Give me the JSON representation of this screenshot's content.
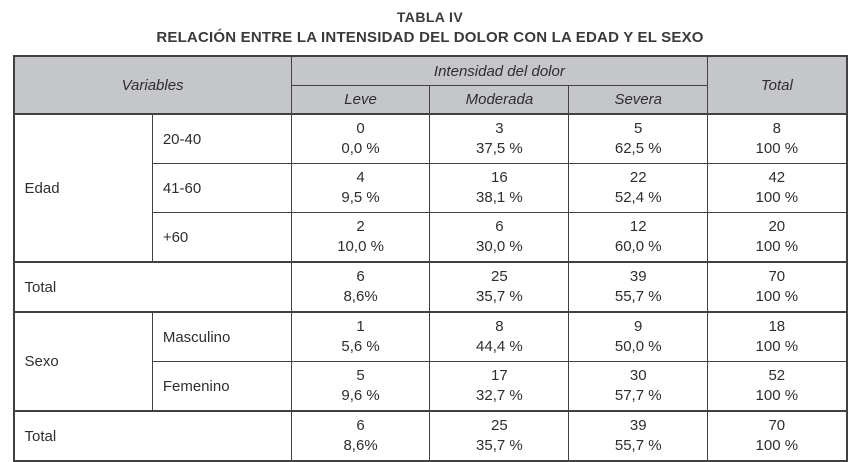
{
  "title": "TABLA IV",
  "subtitle": "RELACIÓN ENTRE LA INTENSIDAD DEL DOLOR CON LA EDAD Y EL SEXO",
  "colors": {
    "header_bg": "#c5c6c9",
    "border_color": "#414141",
    "text_color": "#2e2e2e"
  },
  "chart_data": {
    "type": "table",
    "title": "TABLA IV — RELACIÓN ENTRE LA INTENSIDAD DEL DOLOR CON LA EDAD Y EL SEXO",
    "header": {
      "variables": "Variables",
      "intensity_group": "Intensidad del dolor",
      "sub_columns": [
        "Leve",
        "Moderada",
        "Severa"
      ],
      "total": "Total"
    },
    "row_groups": {
      "edad": "Edad",
      "total1": "Total",
      "sexo": "Sexo",
      "total2": "Total"
    },
    "rows": [
      {
        "label": "20-40",
        "cells": [
          {
            "n": "0",
            "p": "0,0 %"
          },
          {
            "n": "3",
            "p": "37,5 %"
          },
          {
            "n": "5",
            "p": "62,5 %"
          },
          {
            "n": "8",
            "p": "100 %"
          }
        ]
      },
      {
        "label": "41-60",
        "cells": [
          {
            "n": "4",
            "p": "9,5 %"
          },
          {
            "n": "16",
            "p": "38,1 %"
          },
          {
            "n": "22",
            "p": "52,4 %"
          },
          {
            "n": "42",
            "p": "100 %"
          }
        ]
      },
      {
        "label": "+60",
        "cells": [
          {
            "n": "2",
            "p": "10,0 %"
          },
          {
            "n": "6",
            "p": "30,0 %"
          },
          {
            "n": "12",
            "p": "60,0 %"
          },
          {
            "n": "20",
            "p": "100 %"
          }
        ]
      },
      {
        "label": "Total",
        "cells": [
          {
            "n": "6",
            "p": "8,6%"
          },
          {
            "n": "25",
            "p": "35,7 %"
          },
          {
            "n": "39",
            "p": "55,7 %"
          },
          {
            "n": "70",
            "p": "100 %"
          }
        ]
      },
      {
        "label": "Masculino",
        "cells": [
          {
            "n": "1",
            "p": "5,6 %"
          },
          {
            "n": "8",
            "p": "44,4 %"
          },
          {
            "n": "9",
            "p": "50,0 %"
          },
          {
            "n": "18",
            "p": "100 %"
          }
        ]
      },
      {
        "label": "Femenino",
        "cells": [
          {
            "n": "5",
            "p": "9,6 %"
          },
          {
            "n": "17",
            "p": "32,7 %"
          },
          {
            "n": "30",
            "p": "57,7 %"
          },
          {
            "n": "52",
            "p": "100 %"
          }
        ]
      },
      {
        "label": "Total",
        "cells": [
          {
            "n": "6",
            "p": "8,6%"
          },
          {
            "n": "25",
            "p": "35,7 %"
          },
          {
            "n": "39",
            "p": "55,7 %"
          },
          {
            "n": "70",
            "p": "100 %"
          }
        ]
      }
    ]
  }
}
